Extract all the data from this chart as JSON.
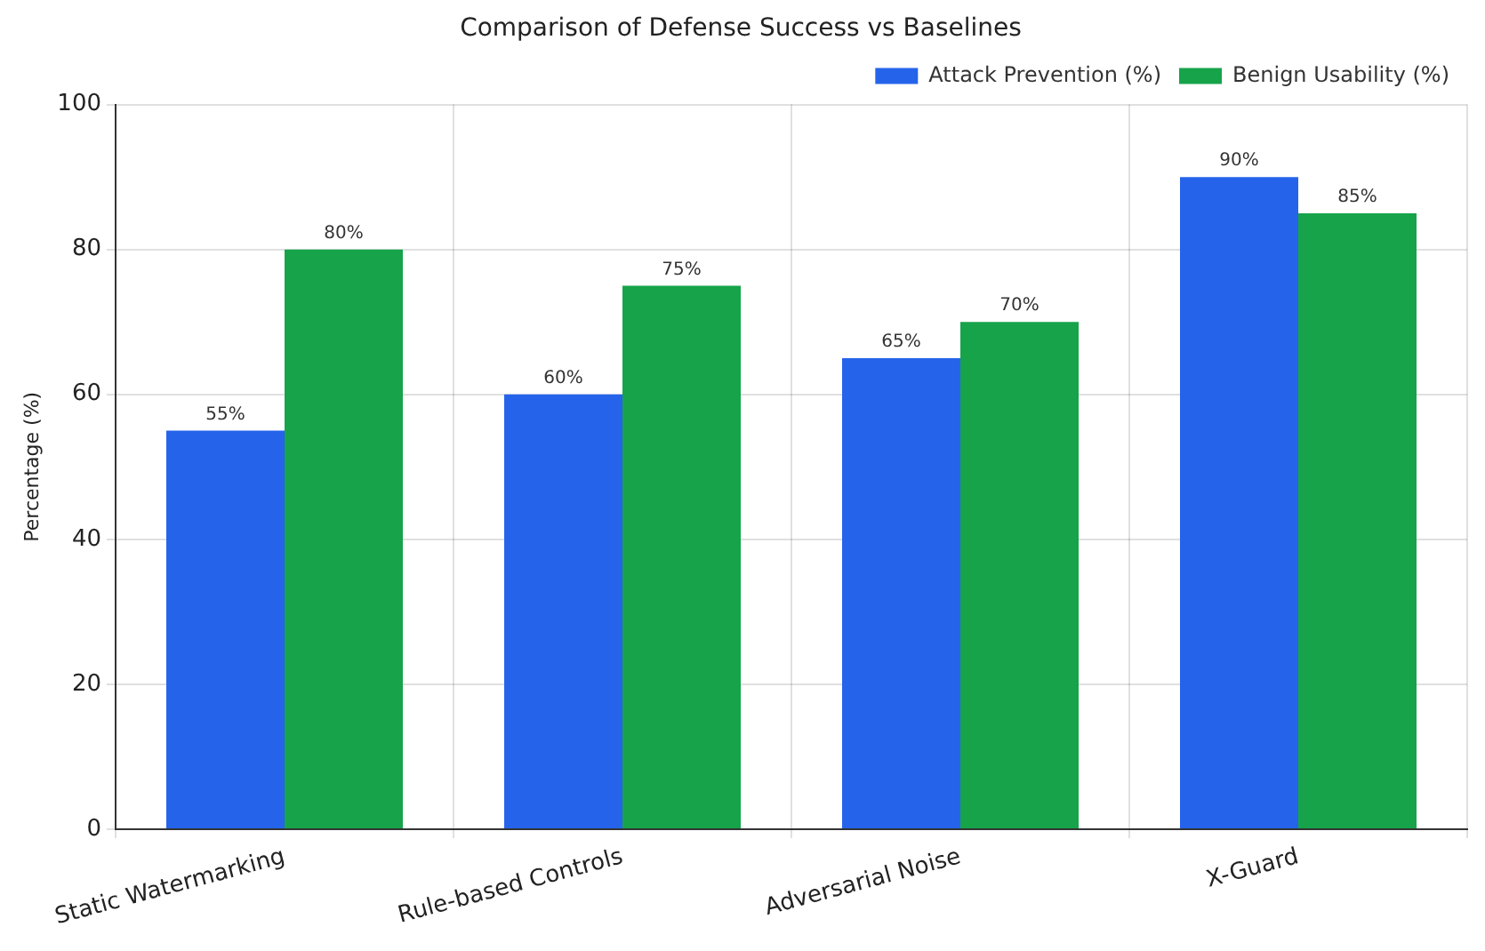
{
  "chart_data": {
    "type": "bar",
    "title": "Comparison of Defense Success vs Baselines",
    "ylabel": "Percentage (%)",
    "categories": [
      "Static Watermarking",
      "Rule-based Controls",
      "Adversarial Noise",
      "X-Guard"
    ],
    "series": [
      {
        "name": "Attack Prevention (%)",
        "color": "#2563eb",
        "values": [
          55,
          60,
          65,
          90
        ],
        "value_labels": [
          "55%",
          "60%",
          "65%",
          "90%"
        ]
      },
      {
        "name": "Benign Usability (%)",
        "color": "#16a34a",
        "values": [
          80,
          75,
          70,
          85
        ],
        "value_labels": [
          "80%",
          "75%",
          "70%",
          "85%"
        ]
      }
    ],
    "ylim": [
      0,
      100
    ],
    "yticks": [
      0,
      20,
      40,
      60,
      80,
      100
    ],
    "grid": true,
    "legend": "top right"
  }
}
